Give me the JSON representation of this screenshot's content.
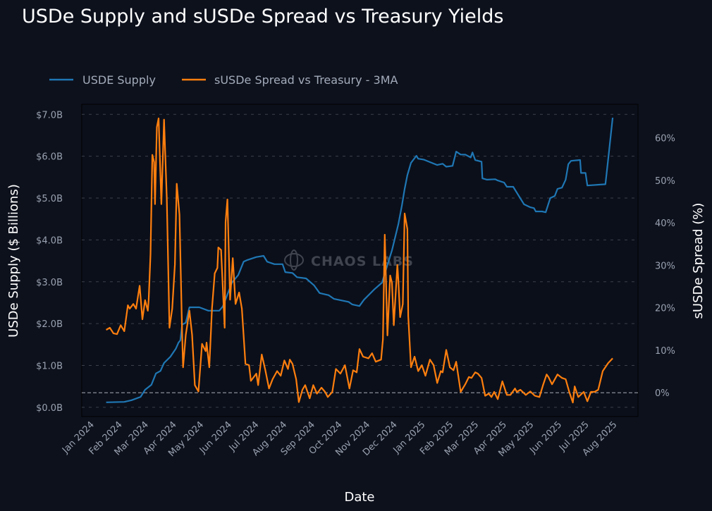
{
  "chart_data": {
    "type": "line",
    "title": "USDe Supply and sUSDe Spread vs Treasury Yields",
    "xlabel": "Date",
    "ylabel_left": "USDe Supply ($ Billions)",
    "ylabel_right": "sUSDe Spread (%)",
    "watermark": "CHAOS LABS",
    "legend_position": "top-left",
    "grid": true,
    "x_origin_date": "2024-01-01",
    "x_unit": "days",
    "xlim": [
      -11,
      604
    ],
    "ylim_left": [
      -0.22,
      7.24
    ],
    "ylim_right": [
      -5.6,
      67.9
    ],
    "reference_line_right": 0,
    "x_ticks": [
      {
        "label": "Jan 2024",
        "day": 0
      },
      {
        "label": "Feb 2024",
        "day": 31
      },
      {
        "label": "Mar 2024",
        "day": 60
      },
      {
        "label": "Apr 2024",
        "day": 91
      },
      {
        "label": "May 2024",
        "day": 121
      },
      {
        "label": "Jun 2024",
        "day": 152
      },
      {
        "label": "Jul 2024",
        "day": 182
      },
      {
        "label": "Aug 2024",
        "day": 213
      },
      {
        "label": "Sep 2024",
        "day": 244
      },
      {
        "label": "Oct 2024",
        "day": 274
      },
      {
        "label": "Nov 2024",
        "day": 305
      },
      {
        "label": "Dec 2024",
        "day": 335
      },
      {
        "label": "Jan 2025",
        "day": 366
      },
      {
        "label": "Feb 2025",
        "day": 397
      },
      {
        "label": "Mar 2025",
        "day": 425
      },
      {
        "label": "Apr 2025",
        "day": 456
      },
      {
        "label": "May 2025",
        "day": 486
      },
      {
        "label": "Jun 2025",
        "day": 517
      },
      {
        "label": "Jul 2025",
        "day": 547
      },
      {
        "label": "Aug 2025",
        "day": 578
      }
    ],
    "y_ticks_left": [
      {
        "label": "$0.0B",
        "value": 0
      },
      {
        "label": "$1.0B",
        "value": 1
      },
      {
        "label": "$2.0B",
        "value": 2
      },
      {
        "label": "$3.0B",
        "value": 3
      },
      {
        "label": "$4.0B",
        "value": 4
      },
      {
        "label": "$5.0B",
        "value": 5
      },
      {
        "label": "$6.0B",
        "value": 6
      },
      {
        "label": "$7.0B",
        "value": 7
      }
    ],
    "y_ticks_right": [
      {
        "label": "0%",
        "value": 0
      },
      {
        "label": "10%",
        "value": 10
      },
      {
        "label": "20%",
        "value": 20
      },
      {
        "label": "30%",
        "value": 30
      },
      {
        "label": "40%",
        "value": 40
      },
      {
        "label": "50%",
        "value": 50
      },
      {
        "label": "60%",
        "value": 60
      }
    ],
    "series": [
      {
        "name": "USDE Supply",
        "axis": "left",
        "color": "#1f77b4",
        "points": [
          [
            16,
            0.12
          ],
          [
            36,
            0.13
          ],
          [
            44,
            0.17
          ],
          [
            54,
            0.25
          ],
          [
            59,
            0.42
          ],
          [
            66,
            0.54
          ],
          [
            71,
            0.81
          ],
          [
            76,
            0.87
          ],
          [
            80,
            1.06
          ],
          [
            87,
            1.21
          ],
          [
            93,
            1.4
          ],
          [
            96,
            1.55
          ],
          [
            98,
            1.6
          ],
          [
            100,
            1.98
          ],
          [
            104,
            2.02
          ],
          [
            108,
            2.39
          ],
          [
            119,
            2.39
          ],
          [
            129,
            2.31
          ],
          [
            141,
            2.31
          ],
          [
            145,
            2.41
          ],
          [
            151,
            2.75
          ],
          [
            155,
            2.98
          ],
          [
            162,
            3.16
          ],
          [
            168,
            3.48
          ],
          [
            172,
            3.52
          ],
          [
            182,
            3.59
          ],
          [
            190,
            3.62
          ],
          [
            194,
            3.48
          ],
          [
            202,
            3.42
          ],
          [
            211,
            3.42
          ],
          [
            214,
            3.23
          ],
          [
            222,
            3.21
          ],
          [
            227,
            3.11
          ],
          [
            237,
            3.08
          ],
          [
            246,
            2.91
          ],
          [
            252,
            2.73
          ],
          [
            262,
            2.68
          ],
          [
            268,
            2.59
          ],
          [
            284,
            2.52
          ],
          [
            288,
            2.46
          ],
          [
            296,
            2.42
          ],
          [
            301,
            2.57
          ],
          [
            312,
            2.81
          ],
          [
            321,
            2.98
          ],
          [
            332,
            3.75
          ],
          [
            339,
            4.37
          ],
          [
            343,
            4.83
          ],
          [
            346,
            5.22
          ],
          [
            349,
            5.55
          ],
          [
            353,
            5.84
          ],
          [
            359,
            6.01
          ],
          [
            361,
            5.94
          ],
          [
            367,
            5.92
          ],
          [
            382,
            5.79
          ],
          [
            388,
            5.82
          ],
          [
            392,
            5.75
          ],
          [
            399,
            5.77
          ],
          [
            403,
            6.11
          ],
          [
            408,
            6.04
          ],
          [
            413,
            6.04
          ],
          [
            419,
            5.97
          ],
          [
            421,
            6.09
          ],
          [
            424,
            5.91
          ],
          [
            431,
            5.87
          ],
          [
            432,
            5.47
          ],
          [
            437,
            5.44
          ],
          [
            446,
            5.45
          ],
          [
            449,
            5.42
          ],
          [
            456,
            5.37
          ],
          [
            459,
            5.27
          ],
          [
            466,
            5.27
          ],
          [
            470,
            5.13
          ],
          [
            478,
            4.85
          ],
          [
            485,
            4.78
          ],
          [
            489,
            4.76
          ],
          [
            491,
            4.68
          ],
          [
            498,
            4.68
          ],
          [
            502,
            4.66
          ],
          [
            507,
            5.0
          ],
          [
            512,
            5.05
          ],
          [
            515,
            5.22
          ],
          [
            520,
            5.25
          ],
          [
            524,
            5.44
          ],
          [
            527,
            5.81
          ],
          [
            530,
            5.89
          ],
          [
            540,
            5.91
          ],
          [
            541,
            5.6
          ],
          [
            546,
            5.6
          ],
          [
            548,
            5.3
          ],
          [
            568,
            5.33
          ],
          [
            572,
            6.11
          ],
          [
            576,
            6.92
          ]
        ]
      },
      {
        "name": "sUSDe Spread vs Treasury - 3MA",
        "axis": "right",
        "color": "#ff7f0e",
        "points": [
          [
            16,
            14.8
          ],
          [
            20,
            15.3
          ],
          [
            24,
            14.0
          ],
          [
            28,
            13.8
          ],
          [
            32,
            15.9
          ],
          [
            36,
            14.5
          ],
          [
            40,
            20.6
          ],
          [
            42,
            19.8
          ],
          [
            46,
            20.9
          ],
          [
            49,
            19.8
          ],
          [
            53,
            25.2
          ],
          [
            56,
            17.3
          ],
          [
            59,
            21.8
          ],
          [
            62,
            19.3
          ],
          [
            63,
            21.9
          ],
          [
            65,
            32.6
          ],
          [
            67,
            56.0
          ],
          [
            69,
            54.3
          ],
          [
            70,
            44.4
          ],
          [
            72,
            62.5
          ],
          [
            74,
            64.6
          ],
          [
            77,
            44.4
          ],
          [
            80,
            64.3
          ],
          [
            83,
            45.8
          ],
          [
            86,
            15.3
          ],
          [
            89,
            19.8
          ],
          [
            92,
            30.2
          ],
          [
            94,
            49.2
          ],
          [
            97,
            41.9
          ],
          [
            100,
            13.6
          ],
          [
            101,
            6.0
          ],
          [
            104,
            13.6
          ],
          [
            108,
            19.3
          ],
          [
            111,
            13.6
          ],
          [
            114,
            1.8
          ],
          [
            118,
            0.3
          ],
          [
            122,
            11.5
          ],
          [
            126,
            9.8
          ],
          [
            127,
            11.8
          ],
          [
            130,
            6.0
          ],
          [
            133,
            19.8
          ],
          [
            136,
            28.1
          ],
          [
            139,
            29.4
          ],
          [
            140,
            34.2
          ],
          [
            143,
            33.6
          ],
          [
            147,
            15.3
          ],
          [
            148,
            40.2
          ],
          [
            150,
            45.5
          ],
          [
            153,
            21.9
          ],
          [
            156,
            31.7
          ],
          [
            159,
            20.9
          ],
          [
            163,
            23.6
          ],
          [
            166,
            19.8
          ],
          [
            170,
            6.8
          ],
          [
            174,
            6.5
          ],
          [
            176,
            2.8
          ],
          [
            182,
            4.5
          ],
          [
            184,
            1.8
          ],
          [
            188,
            9.0
          ],
          [
            192,
            5.3
          ],
          [
            196,
            1.0
          ],
          [
            200,
            3.2
          ],
          [
            205,
            5.1
          ],
          [
            209,
            4.0
          ],
          [
            213,
            7.6
          ],
          [
            217,
            5.6
          ],
          [
            219,
            7.8
          ],
          [
            222,
            6.8
          ],
          [
            226,
            3.2
          ],
          [
            229,
            -2.2
          ],
          [
            233,
            0.7
          ],
          [
            236,
            1.8
          ],
          [
            241,
            -1.3
          ],
          [
            245,
            1.8
          ],
          [
            249,
            -0.2
          ],
          [
            254,
            1.2
          ],
          [
            258,
            0.2
          ],
          [
            261,
            -1.0
          ],
          [
            266,
            0.2
          ],
          [
            270,
            5.6
          ],
          [
            275,
            4.5
          ],
          [
            280,
            6.5
          ],
          [
            285,
            1.0
          ],
          [
            289,
            5.3
          ],
          [
            293,
            4.8
          ],
          [
            296,
            10.3
          ],
          [
            300,
            8.5
          ],
          [
            306,
            8.1
          ],
          [
            310,
            9.3
          ],
          [
            314,
            7.3
          ],
          [
            320,
            7.8
          ],
          [
            322,
            12.6
          ],
          [
            324,
            37.2
          ],
          [
            327,
            13.5
          ],
          [
            330,
            27.6
          ],
          [
            332,
            25.9
          ],
          [
            334,
            15.9
          ],
          [
            338,
            30.1
          ],
          [
            339,
            26.7
          ],
          [
            341,
            17.8
          ],
          [
            344,
            20.9
          ],
          [
            346,
            42.2
          ],
          [
            349,
            38.5
          ],
          [
            350,
            18.1
          ],
          [
            353,
            6.0
          ],
          [
            357,
            8.5
          ],
          [
            361,
            5.1
          ],
          [
            365,
            6.5
          ],
          [
            369,
            4.0
          ],
          [
            374,
            7.8
          ],
          [
            378,
            6.5
          ],
          [
            382,
            2.3
          ],
          [
            386,
            5.1
          ],
          [
            388,
            4.8
          ],
          [
            392,
            10.1
          ],
          [
            396,
            6.0
          ],
          [
            400,
            5.3
          ],
          [
            403,
            7.3
          ],
          [
            408,
            0.2
          ],
          [
            413,
            2.0
          ],
          [
            417,
            3.7
          ],
          [
            420,
            3.5
          ],
          [
            424,
            4.8
          ],
          [
            427,
            4.5
          ],
          [
            431,
            3.5
          ],
          [
            435,
            -0.7
          ],
          [
            439,
            -0.2
          ],
          [
            442,
            -1.0
          ],
          [
            445,
            0.2
          ],
          [
            449,
            -1.5
          ],
          [
            454,
            2.7
          ],
          [
            459,
            -0.5
          ],
          [
            463,
            -0.5
          ],
          [
            468,
            1.0
          ],
          [
            470,
            0.2
          ],
          [
            474,
            0.7
          ],
          [
            480,
            -0.5
          ],
          [
            485,
            0.3
          ],
          [
            490,
            -0.7
          ],
          [
            495,
            -1.0
          ],
          [
            499,
            1.8
          ],
          [
            503,
            4.3
          ],
          [
            505,
            3.7
          ],
          [
            509,
            2.0
          ],
          [
            515,
            4.3
          ],
          [
            520,
            3.5
          ],
          [
            524,
            3.2
          ],
          [
            528,
            0.2
          ],
          [
            532,
            -2.3
          ],
          [
            534,
            1.5
          ],
          [
            538,
            -1.0
          ],
          [
            544,
            0.2
          ],
          [
            548,
            -2.0
          ],
          [
            552,
            0.2
          ],
          [
            556,
            0.2
          ],
          [
            560,
            0.7
          ],
          [
            565,
            5.1
          ],
          [
            571,
            7.0
          ],
          [
            576,
            8.1
          ]
        ]
      }
    ]
  }
}
